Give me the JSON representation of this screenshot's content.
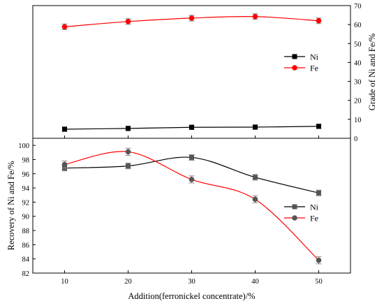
{
  "chart_data": [
    {
      "type": "line",
      "title": "",
      "xlabel": "",
      "ylabel": "Grade of Ni and Fe/%",
      "x": [
        10,
        20,
        30,
        40,
        50
      ],
      "xlim": [
        5,
        55
      ],
      "ylim": [
        0,
        70
      ],
      "yticks": [
        0,
        10,
        20,
        30,
        40,
        50,
        60,
        70
      ],
      "y_axis_side": "right",
      "legend_position": "center-right",
      "grid": false,
      "series": [
        {
          "name": "Ni",
          "values": [
            4.8,
            5.2,
            5.8,
            5.9,
            6.3
          ],
          "errors": [
            1.2,
            1.2,
            1.2,
            1.2,
            1.2
          ],
          "color": "#000000",
          "marker": "square"
        },
        {
          "name": "Fe",
          "values": [
            58.8,
            61.6,
            63.4,
            64.2,
            62.0
          ],
          "errors": [
            1.5,
            1.5,
            1.5,
            1.5,
            1.5
          ],
          "color": "#ff0000",
          "marker": "circle"
        }
      ]
    },
    {
      "type": "line",
      "title": "",
      "xlabel": "Addition(ferronickel concentrate)/%",
      "ylabel": "Recovery of Ni and Fe/%",
      "x": [
        10,
        20,
        30,
        40,
        50
      ],
      "xticks": [
        "10",
        "20",
        "30",
        "40",
        "50"
      ],
      "xlim": [
        5,
        55
      ],
      "ylim": [
        82,
        101
      ],
      "yticks": [
        82,
        84,
        86,
        88,
        90,
        92,
        94,
        96,
        98,
        100
      ],
      "y_axis_side": "left",
      "legend_position": "center-right",
      "grid": false,
      "series": [
        {
          "name": "Ni",
          "values": [
            96.8,
            97.1,
            98.3,
            95.5,
            93.3
          ],
          "errors": [
            0.4,
            0.4,
            0.4,
            0.4,
            0.4
          ],
          "color": "#555555",
          "marker": "square"
        },
        {
          "name": "Fe",
          "values": [
            97.3,
            99.1,
            95.2,
            92.4,
            83.8
          ],
          "errors": [
            0.5,
            0.5,
            0.5,
            0.5,
            0.5
          ],
          "color": "#555555",
          "marker": "circle"
        }
      ]
    }
  ]
}
